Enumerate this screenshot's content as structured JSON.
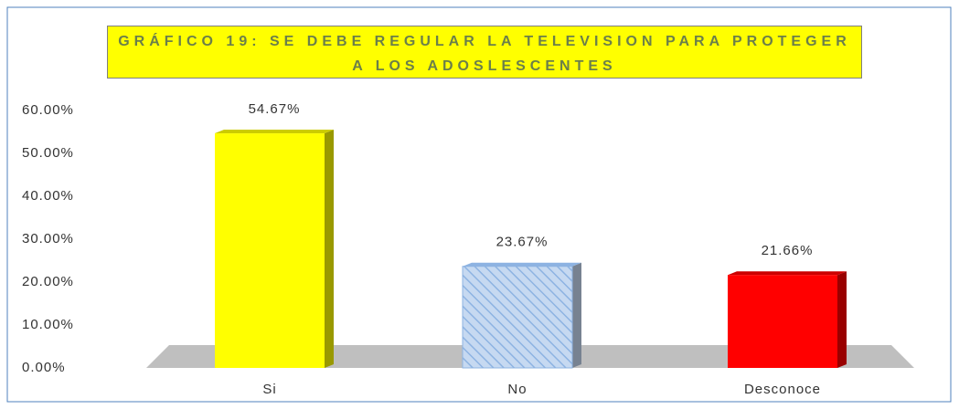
{
  "chart_data": {
    "type": "bar",
    "title": "GRÁFICO 19: SE DEBE REGULAR LA TELEVISION PARA PROTEGER A LOS ADOSLESCENTES",
    "categories": [
      "Si",
      "No",
      "Desconoce"
    ],
    "values": [
      54.67,
      23.67,
      21.66
    ],
    "value_labels": [
      "54.67%",
      "23.67%",
      "21.66%"
    ],
    "colors": [
      "#ffff00",
      "#c6d9f1",
      "#ff0000"
    ],
    "hatch": [
      false,
      true,
      false
    ],
    "ylim": [
      0,
      60
    ],
    "yticks": [
      {
        "value": 0,
        "label": "0.00%"
      },
      {
        "value": 10,
        "label": "10.00%"
      },
      {
        "value": 20,
        "label": "20.00%"
      },
      {
        "value": 30,
        "label": "30.00%"
      },
      {
        "value": 40,
        "label": "40.00%"
      },
      {
        "value": 50,
        "label": "50.00%"
      },
      {
        "value": 60,
        "label": "60.00%"
      }
    ],
    "grid": false
  }
}
